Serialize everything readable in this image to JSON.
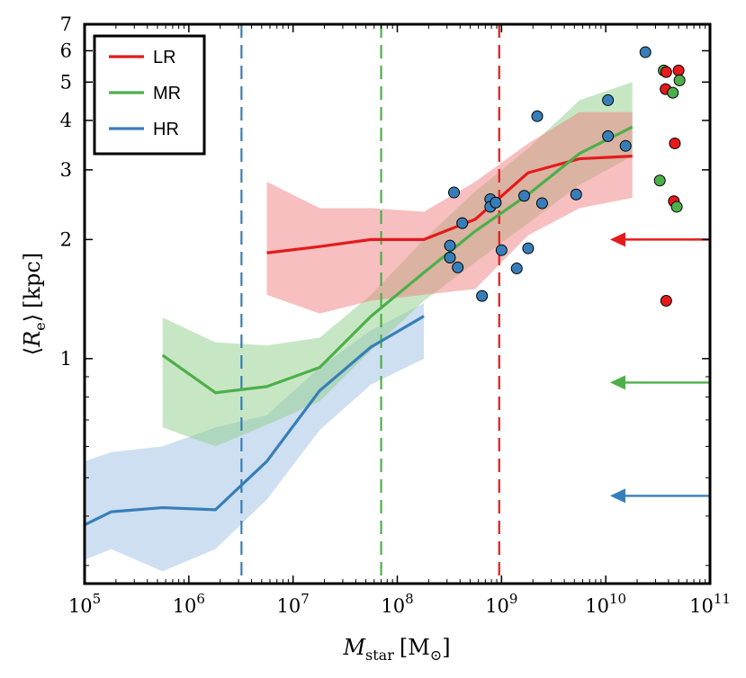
{
  "chart_data": {
    "type": "line",
    "xscale": "log",
    "yscale": "log",
    "xlim": [
      100000,
      100000000000
    ],
    "ylim": [
      0.27,
      7.0
    ],
    "xlabel": {
      "symbol": "M",
      "subscript": "star",
      "unit": "[M",
      "unit_sub": "⊙",
      "unit_close": "]"
    },
    "ylabel": {
      "open": "⟨",
      "symbol": "R",
      "subscript": "e",
      "close": "⟩",
      "unit": "[kpc]"
    },
    "x_ticks": [
      {
        "value": 100000,
        "base": "10",
        "exp": "5"
      },
      {
        "value": 1000000,
        "base": "10",
        "exp": "6"
      },
      {
        "value": 10000000,
        "base": "10",
        "exp": "7"
      },
      {
        "value": 100000000,
        "base": "10",
        "exp": "8"
      },
      {
        "value": 1000000000,
        "base": "10",
        "exp": "9"
      },
      {
        "value": 10000000000,
        "base": "10",
        "exp": "10"
      },
      {
        "value": 100000000000,
        "base": "10",
        "exp": "11"
      }
    ],
    "y_ticks": [
      {
        "value": 1,
        "label": "1"
      },
      {
        "value": 2,
        "label": "2"
      },
      {
        "value": 3,
        "label": "3"
      },
      {
        "value": 4,
        "label": "4"
      },
      {
        "value": 5,
        "label": "5"
      },
      {
        "value": 6,
        "label": "6"
      },
      {
        "value": 7,
        "label": "7"
      }
    ],
    "y_minor_ticks": [
      0.3,
      0.4,
      0.5,
      0.6,
      0.7,
      0.8,
      0.9
    ],
    "legend": {
      "position": "top-left",
      "entries": [
        {
          "label": "LR",
          "color": "#e41a1c"
        },
        {
          "label": "MR",
          "color": "#4daf4a"
        },
        {
          "label": "HR",
          "color": "#377eb8"
        }
      ]
    },
    "series": [
      {
        "name": "LR",
        "color": "#e41a1c",
        "band_color": "#f08080",
        "x": [
          5600000,
          18000000,
          56000000,
          180000000,
          560000000,
          1800000000,
          5600000000,
          18000000000
        ],
        "y": [
          1.85,
          1.92,
          2.0,
          2.0,
          2.25,
          2.95,
          3.2,
          3.25
        ],
        "y_low": [
          1.45,
          1.3,
          1.4,
          1.45,
          1.5,
          2.05,
          2.4,
          2.55
        ],
        "y_high": [
          2.8,
          2.4,
          2.4,
          2.35,
          2.8,
          3.5,
          4.2,
          4.2
        ]
      },
      {
        "name": "MR",
        "color": "#4daf4a",
        "band_color": "#8fd08a",
        "x": [
          560000,
          1800000,
          5600000,
          18000000,
          56000000,
          180000000,
          560000000,
          1800000000,
          5600000000,
          18000000000
        ],
        "y": [
          1.02,
          0.82,
          0.85,
          0.95,
          1.28,
          1.65,
          2.1,
          2.6,
          3.3,
          3.85
        ],
        "y_low": [
          0.67,
          0.6,
          0.68,
          0.78,
          1.05,
          1.4,
          1.75,
          2.2,
          2.75,
          3.25
        ],
        "y_high": [
          1.27,
          1.1,
          1.08,
          1.13,
          1.45,
          2.0,
          2.65,
          3.4,
          4.5,
          5.0
        ]
      },
      {
        "name": "HR",
        "color": "#377eb8",
        "band_color": "#9ec0e4",
        "x": [
          100000,
          180000,
          560000,
          1800000,
          5600000,
          18000000,
          56000000,
          180000000
        ],
        "y": [
          0.38,
          0.41,
          0.42,
          0.415,
          0.55,
          0.83,
          1.07,
          1.28
        ],
        "y_low": [
          0.31,
          0.33,
          0.29,
          0.33,
          0.44,
          0.66,
          0.86,
          1.0
        ],
        "y_high": [
          0.55,
          0.58,
          0.6,
          0.67,
          0.72,
          0.95,
          1.18,
          1.38
        ]
      }
    ],
    "vertical_lines": [
      {
        "label": "HR",
        "x": 3200000,
        "color": "#377eb8",
        "style": "dashed"
      },
      {
        "label": "MR",
        "x": 70000000,
        "color": "#4daf4a",
        "style": "dashed"
      },
      {
        "label": "LR",
        "x": 950000000,
        "color": "#e41a1c",
        "style": "dashed"
      }
    ],
    "arrows": [
      {
        "label": "LR",
        "y": 2.0,
        "x_start": 100000000000,
        "x_end": 11000000000,
        "color": "#e41a1c"
      },
      {
        "label": "MR",
        "y": 0.87,
        "x_start": 100000000000,
        "x_end": 11000000000,
        "color": "#4daf4a"
      },
      {
        "label": "HR",
        "y": 0.45,
        "x_start": 100000000000,
        "x_end": 11000000000,
        "color": "#377eb8"
      }
    ],
    "scatter_observed": {
      "color": "#377eb8",
      "points": [
        [
          320000000,
          1.93
        ],
        [
          320000000,
          1.8
        ],
        [
          350000000,
          2.63
        ],
        [
          380000000,
          1.7
        ],
        [
          420000000,
          2.2
        ],
        [
          650000000,
          1.44
        ],
        [
          780000000,
          2.53
        ],
        [
          780000000,
          2.42
        ],
        [
          880000000,
          2.48
        ],
        [
          1000000000,
          1.88
        ],
        [
          1400000000,
          1.69
        ],
        [
          1650000000,
          2.58
        ],
        [
          1800000000,
          1.9
        ],
        [
          2200000000,
          4.1
        ],
        [
          2450000000,
          2.47
        ],
        [
          5200000000,
          2.6
        ],
        [
          10500000000,
          4.5
        ],
        [
          10500000000,
          3.65
        ],
        [
          15500000000,
          3.45
        ],
        [
          24000000000,
          5.95
        ]
      ]
    },
    "scatter_right": {
      "points": [
        {
          "x": 36000000000,
          "y": 5.35,
          "color": "#4daf4a"
        },
        {
          "x": 38000000000,
          "y": 5.3,
          "color": "#e41a1c"
        },
        {
          "x": 50000000000,
          "y": 5.35,
          "color": "#e41a1c"
        },
        {
          "x": 37500000000,
          "y": 4.8,
          "color": "#e41a1c"
        },
        {
          "x": 44000000000,
          "y": 4.7,
          "color": "#4daf4a"
        },
        {
          "x": 51000000000,
          "y": 5.05,
          "color": "#4daf4a"
        },
        {
          "x": 46000000000,
          "y": 3.5,
          "color": "#e41a1c"
        },
        {
          "x": 33000000000,
          "y": 2.82,
          "color": "#4daf4a"
        },
        {
          "x": 45000000000,
          "y": 2.5,
          "color": "#e41a1c"
        },
        {
          "x": 48000000000,
          "y": 2.42,
          "color": "#4daf4a"
        },
        {
          "x": 38000000000,
          "y": 1.4,
          "color": "#e41a1c"
        }
      ]
    }
  }
}
